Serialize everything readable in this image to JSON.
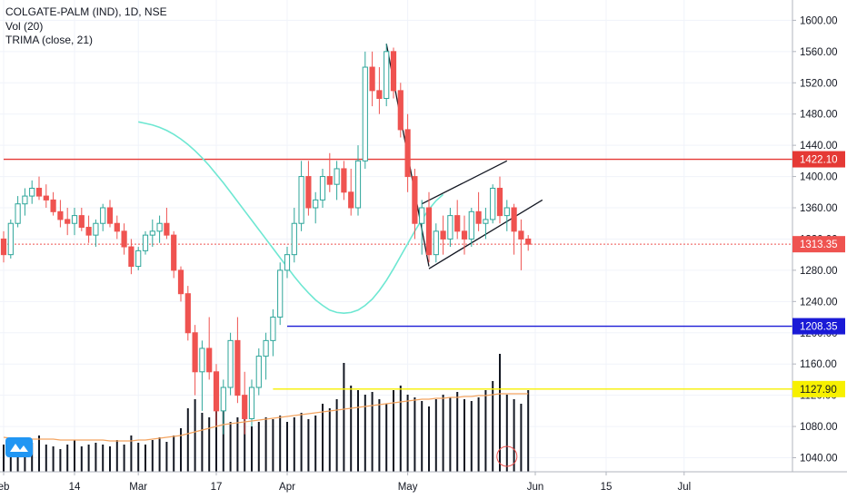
{
  "legend": {
    "symbol": "COLGATE-PALM (IND), 1D, NSE",
    "volume": "Vol (20)",
    "trima": "TRIMA (close, 21)"
  },
  "colors": {
    "up": "#2da69a",
    "down": "#ef5350",
    "trima": "#6ee7d2",
    "volume_ma": "#f4a460",
    "resistance": "#e53935",
    "support_blue": "#1a1ad6",
    "support_yellow": "#f7f000",
    "current_price": "#ef5350",
    "logo": "#2196f3"
  },
  "price_tags": [
    {
      "label": "1422.10",
      "value": 1422.1,
      "color": "#e53935",
      "text_color": "#ffffff"
    },
    {
      "label": "1313.35",
      "value": 1313.35,
      "color": "#ef5350",
      "text_color": "#ffffff"
    },
    {
      "label": "1208.35",
      "value": 1208.35,
      "color": "#1a1ad6",
      "text_color": "#ffffff"
    },
    {
      "label": "1127.90",
      "value": 1127.9,
      "color": "#f7f000",
      "text_color": "#131722"
    }
  ],
  "chart_data": {
    "type": "candlestick",
    "y_ticks": [
      "1040.00",
      "1080.00",
      "1120.00",
      "1160.00",
      "1200.00",
      "1240.00",
      "1280.00",
      "1320.00",
      "1360.00",
      "1400.00",
      "1440.00",
      "1480.00",
      "1520.00",
      "1560.00",
      "1600.00"
    ],
    "ylim": [
      1022,
      1626
    ],
    "x_ticks": [
      "eb",
      "14",
      "Mar",
      "17",
      "Apr",
      "May",
      "Jun",
      "15",
      "Jul"
    ],
    "x_tick_bars": [
      0,
      10,
      19,
      30,
      40,
      57,
      75,
      85,
      96
    ],
    "bar_count": 110,
    "candles": [
      [
        1320,
        1330,
        1290,
        1300
      ],
      [
        1300,
        1345,
        1295,
        1340
      ],
      [
        1340,
        1375,
        1335,
        1365
      ],
      [
        1365,
        1385,
        1350,
        1375
      ],
      [
        1375,
        1395,
        1365,
        1385
      ],
      [
        1385,
        1400,
        1370,
        1375
      ],
      [
        1375,
        1390,
        1360,
        1370
      ],
      [
        1370,
        1380,
        1350,
        1355
      ],
      [
        1355,
        1370,
        1335,
        1345
      ],
      [
        1345,
        1360,
        1325,
        1340
      ],
      [
        1340,
        1360,
        1325,
        1350
      ],
      [
        1350,
        1360,
        1330,
        1335
      ],
      [
        1335,
        1350,
        1315,
        1325
      ],
      [
        1325,
        1345,
        1310,
        1340
      ],
      [
        1340,
        1365,
        1330,
        1360
      ],
      [
        1360,
        1370,
        1335,
        1340
      ],
      [
        1340,
        1350,
        1320,
        1330
      ],
      [
        1330,
        1340,
        1300,
        1310
      ],
      [
        1310,
        1320,
        1275,
        1285
      ],
      [
        1285,
        1310,
        1280,
        1305
      ],
      [
        1305,
        1330,
        1300,
        1325
      ],
      [
        1325,
        1345,
        1310,
        1330
      ],
      [
        1330,
        1350,
        1315,
        1340
      ],
      [
        1340,
        1360,
        1320,
        1325
      ],
      [
        1325,
        1330,
        1270,
        1280
      ],
      [
        1280,
        1285,
        1240,
        1250
      ],
      [
        1250,
        1260,
        1190,
        1200
      ],
      [
        1200,
        1210,
        1120,
        1150
      ],
      [
        1150,
        1190,
        1100,
        1180
      ],
      [
        1180,
        1220,
        1140,
        1150
      ],
      [
        1150,
        1160,
        1080,
        1100
      ],
      [
        1100,
        1140,
        1070,
        1130
      ],
      [
        1130,
        1200,
        1120,
        1190
      ],
      [
        1190,
        1220,
        1110,
        1120
      ],
      [
        1120,
        1150,
        1070,
        1090
      ],
      [
        1090,
        1140,
        1080,
        1130
      ],
      [
        1130,
        1180,
        1120,
        1170
      ],
      [
        1170,
        1200,
        1140,
        1190
      ],
      [
        1190,
        1230,
        1170,
        1220
      ],
      [
        1220,
        1290,
        1210,
        1280
      ],
      [
        1280,
        1310,
        1270,
        1300
      ],
      [
        1300,
        1360,
        1290,
        1340
      ],
      [
        1340,
        1420,
        1330,
        1400
      ],
      [
        1400,
        1420,
        1350,
        1360
      ],
      [
        1360,
        1380,
        1340,
        1370
      ],
      [
        1370,
        1410,
        1360,
        1400
      ],
      [
        1400,
        1430,
        1380,
        1390
      ],
      [
        1390,
        1420,
        1370,
        1410
      ],
      [
        1410,
        1420,
        1370,
        1380
      ],
      [
        1380,
        1410,
        1350,
        1360
      ],
      [
        1360,
        1440,
        1350,
        1420
      ],
      [
        1420,
        1560,
        1410,
        1540
      ],
      [
        1540,
        1560,
        1490,
        1510
      ],
      [
        1510,
        1540,
        1480,
        1500
      ],
      [
        1500,
        1570,
        1490,
        1560
      ],
      [
        1560,
        1565,
        1500,
        1510
      ],
      [
        1510,
        1520,
        1450,
        1460
      ],
      [
        1460,
        1480,
        1380,
        1400
      ],
      [
        1400,
        1410,
        1320,
        1340
      ],
      [
        1340,
        1370,
        1300,
        1360
      ],
      [
        1360,
        1380,
        1290,
        1300
      ],
      [
        1300,
        1340,
        1290,
        1330
      ],
      [
        1330,
        1350,
        1300,
        1320
      ],
      [
        1320,
        1360,
        1310,
        1350
      ],
      [
        1350,
        1370,
        1320,
        1330
      ],
      [
        1330,
        1350,
        1300,
        1320
      ],
      [
        1320,
        1360,
        1310,
        1355
      ],
      [
        1355,
        1380,
        1330,
        1340
      ],
      [
        1340,
        1360,
        1320,
        1345
      ],
      [
        1345,
        1390,
        1340,
        1385
      ],
      [
        1385,
        1400,
        1340,
        1350
      ],
      [
        1350,
        1370,
        1330,
        1360
      ],
      [
        1360,
        1365,
        1300,
        1330
      ],
      [
        1330,
        1345,
        1280,
        1320
      ],
      [
        1320,
        1325,
        1305,
        1313.35
      ]
    ],
    "volume": [
      30,
      25,
      28,
      35,
      32,
      40,
      30,
      28,
      25,
      30,
      35,
      28,
      30,
      32,
      30,
      28,
      35,
      30,
      40,
      32,
      30,
      35,
      38,
      33,
      40,
      48,
      70,
      80,
      65,
      60,
      75,
      70,
      55,
      60,
      65,
      50,
      55,
      60,
      58,
      62,
      55,
      60,
      65,
      58,
      62,
      75,
      70,
      80,
      120,
      95,
      90,
      85,
      88,
      80,
      75,
      90,
      95,
      85,
      82,
      78,
      72,
      80,
      85,
      82,
      88,
      80,
      78,
      82,
      90,
      100,
      130,
      85,
      80,
      75,
      90
    ],
    "trima_start_bar": 0,
    "trima": [
      1470,
      1468,
      1466,
      1463,
      1459,
      1454,
      1448,
      1441,
      1433,
      1424,
      1414,
      1403,
      1392,
      1380,
      1368,
      1356,
      1344,
      1332,
      1320,
      1308,
      1296,
      1284,
      1272,
      1261,
      1251,
      1242,
      1235,
      1229,
      1226,
      1225,
      1226,
      1229,
      1235,
      1243,
      1254,
      1267,
      1282,
      1298,
      1314,
      1330,
      1345,
      1358,
      1369,
      1377
    ],
    "trima_bar_offset": 19,
    "volume_ma": [
      38,
      37,
      37,
      36,
      36,
      36,
      36,
      36,
      35,
      35,
      35,
      35,
      35,
      35,
      35,
      34,
      34,
      34,
      34,
      35,
      35,
      36,
      37,
      38,
      39,
      40,
      42,
      44,
      46,
      48,
      50,
      52,
      53,
      54,
      55,
      56,
      57,
      58,
      59,
      60,
      61,
      62,
      63,
      64,
      65,
      66,
      67,
      68,
      69,
      70,
      71,
      72,
      73,
      74,
      75,
      76,
      77,
      78,
      79,
      80,
      80,
      81,
      81,
      82,
      82,
      83,
      83,
      84,
      84,
      85,
      86,
      86,
      86,
      86,
      86
    ],
    "horizontal_levels": [
      {
        "value": 1422.1,
        "from_bar": 0,
        "style": "solid",
        "color": "#e53935"
      },
      {
        "value": 1313.35,
        "from_bar": 0,
        "style": "dotted",
        "color": "#ef5350"
      },
      {
        "value": 1208.35,
        "from_bar": 40,
        "style": "solid",
        "color": "#1a1ad6"
      },
      {
        "value": 1127.9,
        "from_bar": 38,
        "style": "solid",
        "color": "#f7f000"
      }
    ]
  }
}
